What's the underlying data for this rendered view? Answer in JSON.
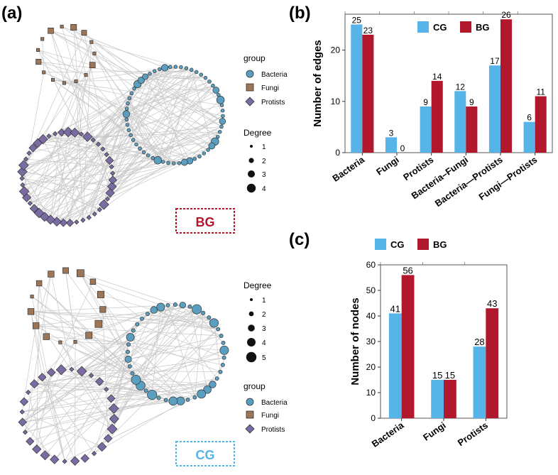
{
  "figure": {
    "panel_a": {
      "label": "(a)",
      "networks": [
        {
          "badge": "BG",
          "badge_color": "#b2182b",
          "legend_group_title": "group",
          "legend_group_items": [
            "Bacteria",
            "Fungi",
            "Protists"
          ],
          "legend_degree_title": "Degree",
          "legend_degree_values": [
            "1",
            "2",
            "3",
            "4"
          ]
        },
        {
          "badge": "CG",
          "badge_color": "#5ab4e5",
          "legend_group_title": "group",
          "legend_group_items": [
            "Bacteria",
            "Fungi",
            "Protists"
          ],
          "legend_degree_title": "Degree",
          "legend_degree_values": [
            "1",
            "2",
            "3",
            "4",
            "5"
          ]
        }
      ],
      "node_colors": {
        "Bacteria": "#5b9fc0",
        "Fungi": "#9c7658",
        "Protists": "#7a6ba3"
      }
    },
    "panel_b_label": "(b)",
    "panel_c_label": "(c)"
  },
  "colors": {
    "CG": "#56b4e9",
    "BG": "#b2182b"
  },
  "chart_data": [
    {
      "type": "bar",
      "panel": "(b)",
      "title": "",
      "ylabel": "Number of edges",
      "xlabel": "",
      "categories": [
        "Bacteria",
        "Fungi",
        "Protists",
        "Bacteria–Fungi",
        "Bacteria—Protists",
        "Fungi—Protists"
      ],
      "series": [
        {
          "name": "CG",
          "values": [
            25,
            3,
            9,
            12,
            17,
            6
          ]
        },
        {
          "name": "BG",
          "values": [
            23,
            0,
            14,
            9,
            26,
            11
          ]
        }
      ],
      "yticks": [
        0,
        10,
        20
      ],
      "ylim": [
        0,
        27
      ],
      "legend": "top-center"
    },
    {
      "type": "bar",
      "panel": "(c)",
      "title": "",
      "ylabel": "Number of nodes",
      "xlabel": "",
      "categories": [
        "Bacteria",
        "Fungi",
        "Protists"
      ],
      "series": [
        {
          "name": "CG",
          "values": [
            41,
            15,
            28
          ]
        },
        {
          "name": "BG",
          "values": [
            56,
            15,
            43
          ]
        }
      ],
      "yticks": [
        0,
        10,
        20,
        30,
        40,
        50,
        60
      ],
      "ylim": [
        0,
        60
      ],
      "legend": "top-center"
    }
  ]
}
